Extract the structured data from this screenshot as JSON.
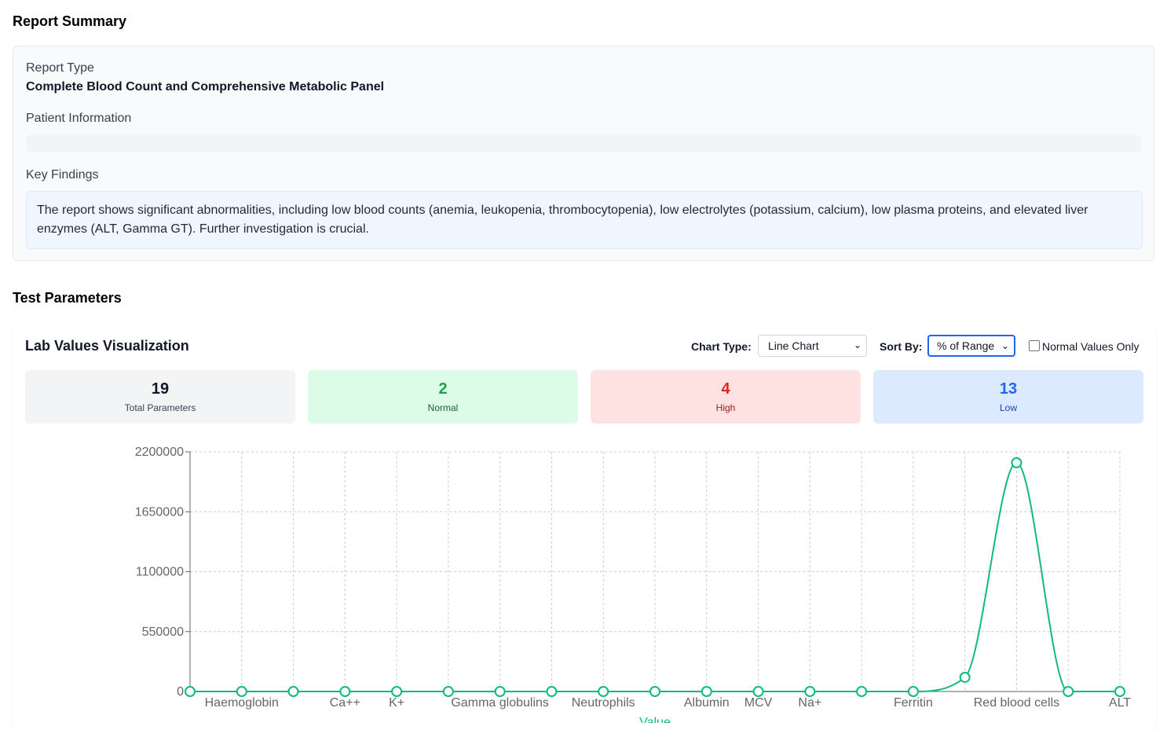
{
  "summary": {
    "title": "Report Summary",
    "report_type_label": "Report Type",
    "report_type_value": "Complete Blood Count and Comprehensive Metabolic Panel",
    "patient_info_label": "Patient Information",
    "key_findings_label": "Key Findings",
    "key_findings_text": "The report shows significant abnormalities, including low blood counts (anemia, leukopenia, thrombocytopenia), low electrolytes (potassium, calcium), low plasma proteins, and elevated liver enzymes (ALT, Gamma GT). Further investigation is crucial."
  },
  "parameters": {
    "title": "Test Parameters",
    "viz_title": "Lab Values Visualization",
    "chart_type_label": "Chart Type:",
    "chart_type_value": "Line Chart",
    "sort_by_label": "Sort By:",
    "sort_by_value": "% of Range",
    "normal_only_label": "Normal Values Only",
    "stats": {
      "total": {
        "value": "19",
        "label": "Total Parameters"
      },
      "normal": {
        "value": "2",
        "label": "Normal"
      },
      "high": {
        "value": "4",
        "label": "High"
      },
      "low": {
        "value": "13",
        "label": "Low"
      }
    }
  },
  "colors": {
    "line": "#10b981",
    "grid": "#cccccc",
    "axis": "#666666"
  },
  "chart_data": {
    "type": "line",
    "x": [
      "",
      "Haemoglobin",
      "",
      "Ca++",
      "K+",
      "",
      "Gamma globulins",
      "",
      "Neutrophils",
      "",
      "Albumin",
      "MCV",
      "Na+",
      "",
      "Ferritin",
      "",
      "Red blood cells",
      "",
      "ALT"
    ],
    "series": [
      {
        "values": [
          0,
          0,
          0,
          0,
          0,
          0,
          0,
          0,
          0,
          0,
          0,
          0,
          0,
          0,
          0,
          130000,
          2100000,
          0,
          0
        ]
      }
    ],
    "yticks": [
      "0",
      "550000",
      "1100000",
      "1650000",
      "2200000"
    ],
    "ylim": [
      0,
      2200000
    ],
    "xlabel": "Value",
    "grid": true,
    "legend": false
  }
}
